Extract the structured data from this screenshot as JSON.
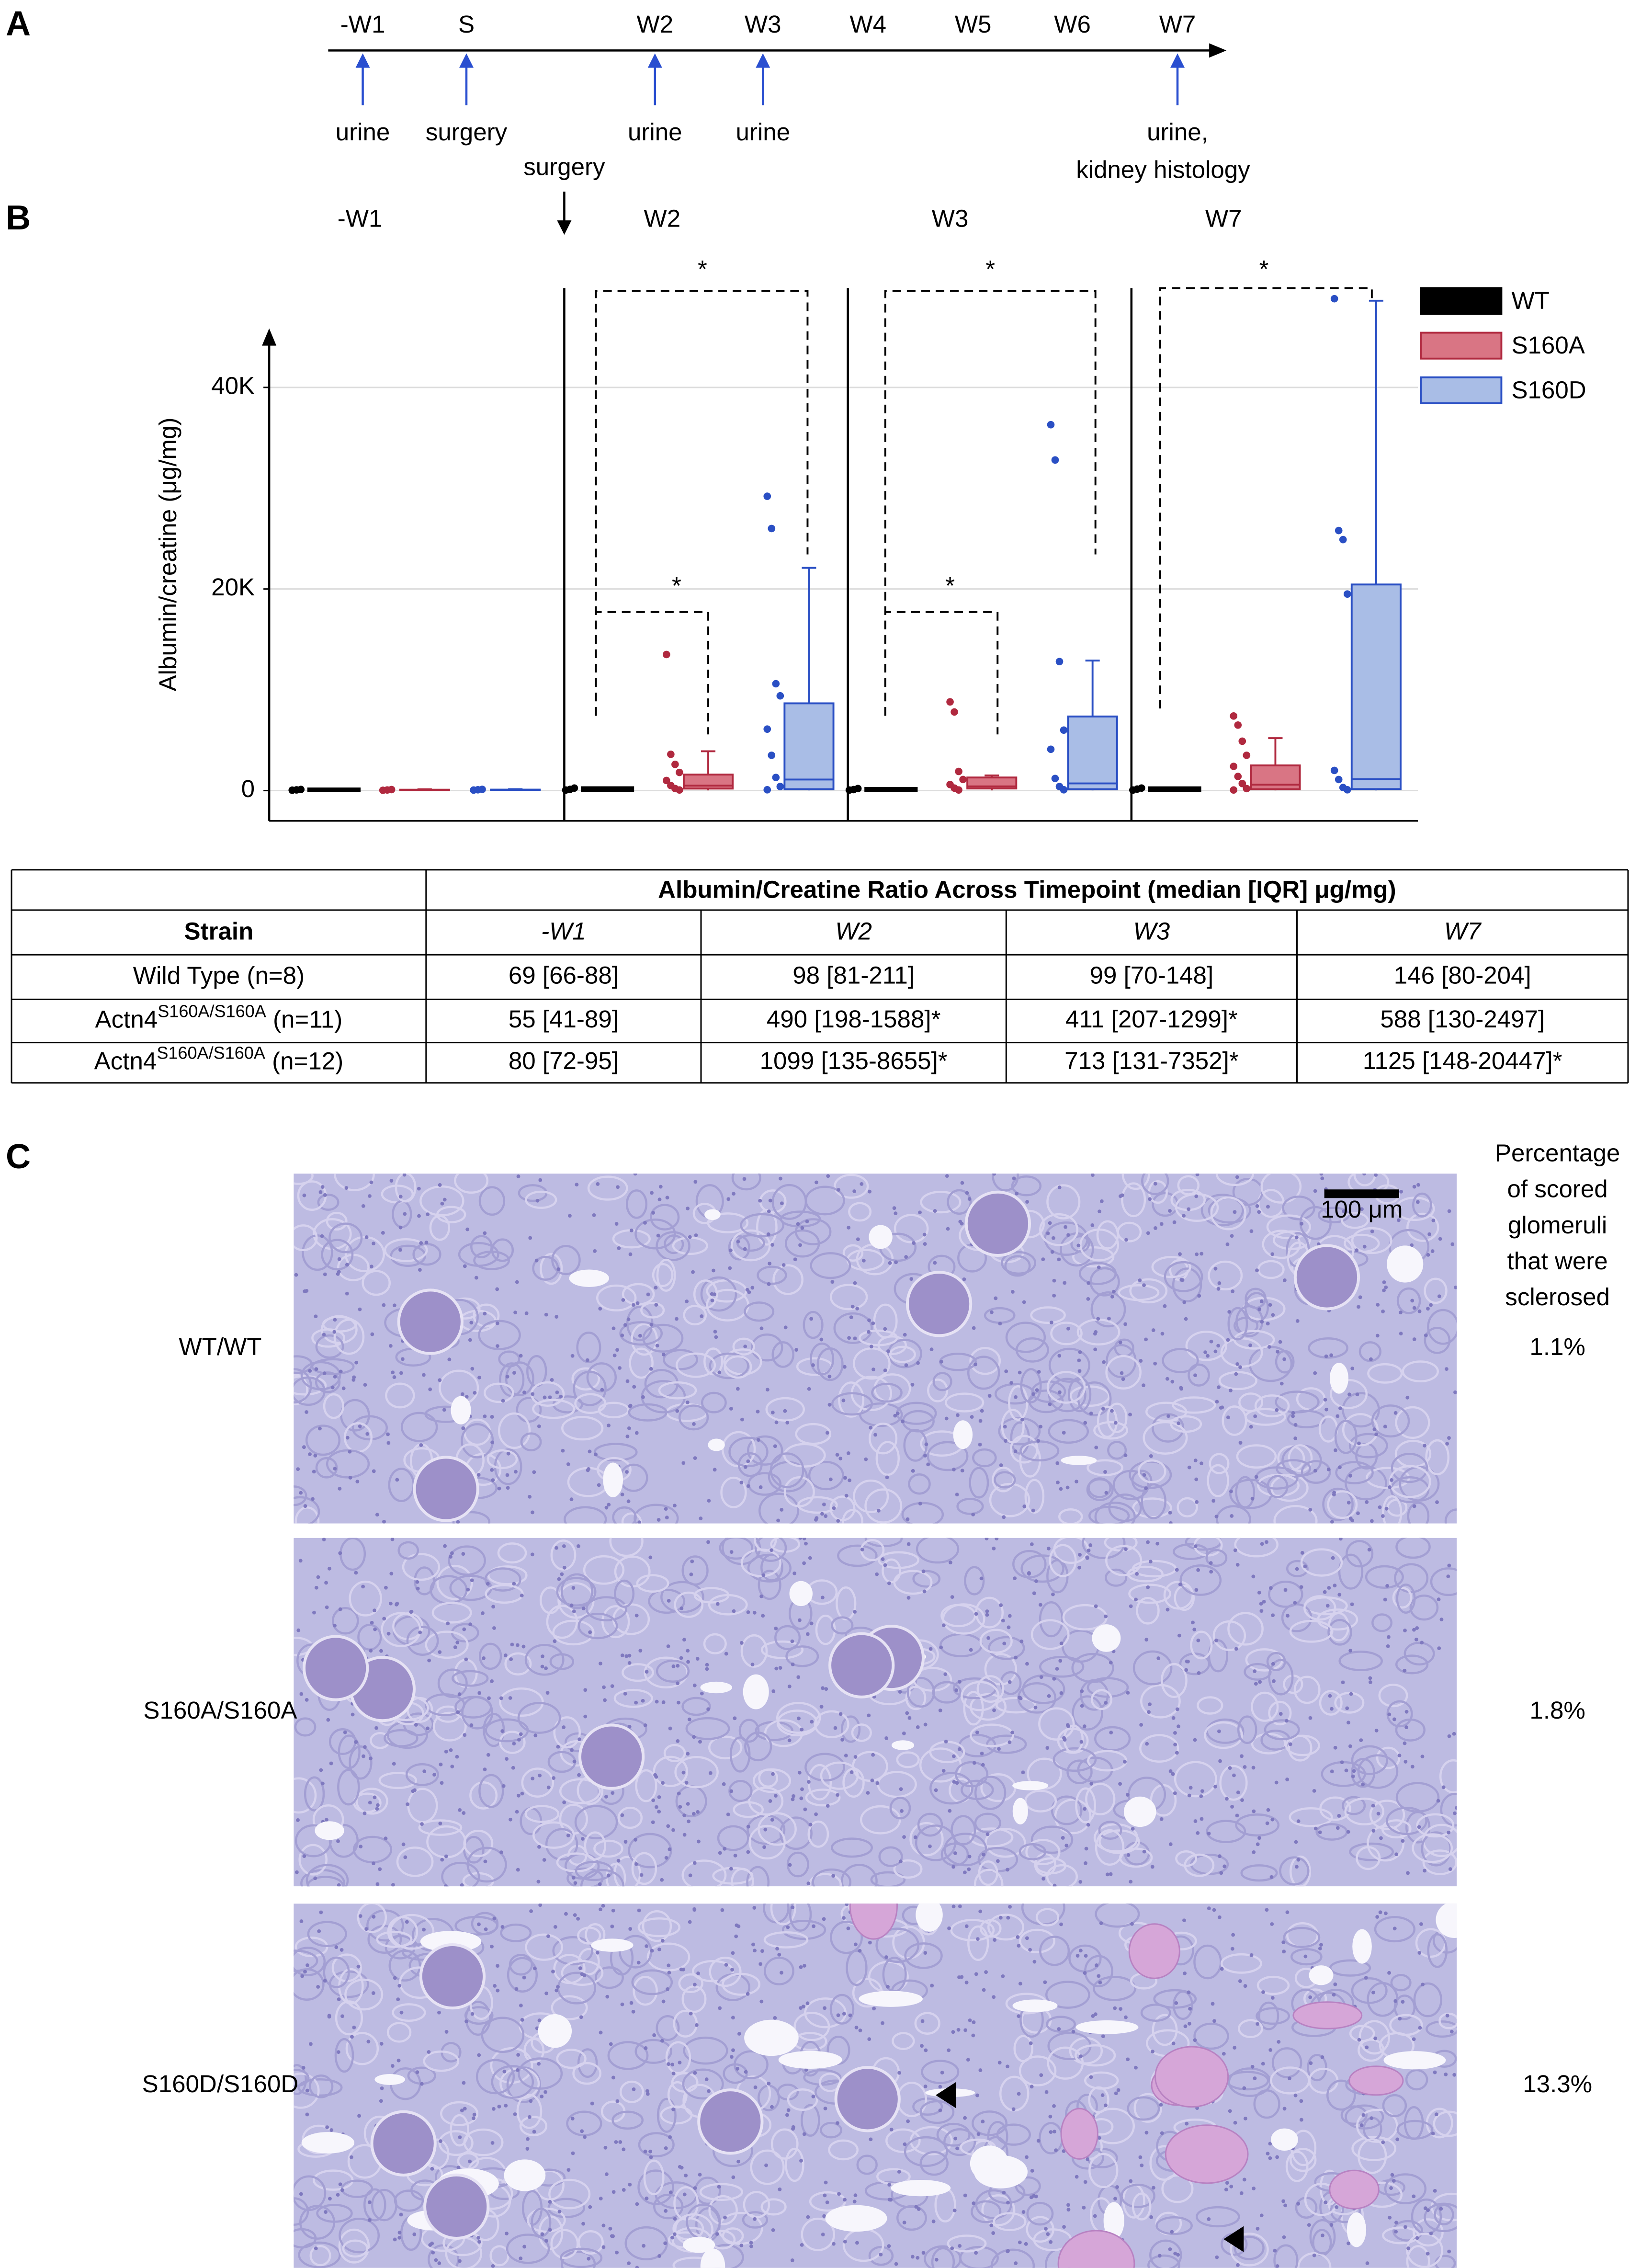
{
  "panel_a": {
    "letter": "A",
    "timepoints": [
      "-W1",
      "S",
      "W2",
      "W3",
      "W4",
      "W5",
      "W6",
      "W7"
    ],
    "events": [
      [
        "urine"
      ],
      [
        "surgery"
      ],
      [
        "urine"
      ],
      [
        "urine"
      ],
      [
        "urine,",
        "kidney histology"
      ]
    ]
  },
  "chart_data": {
    "type": "box",
    "letter": "B",
    "surgery_label": "surgery",
    "groups": [
      "-W1",
      "W2",
      "W3",
      "W7"
    ],
    "y_label": "Albumin/creatine (μg/mg)",
    "ylim": [
      -3000,
      50000
    ],
    "yticks": [
      0,
      {
        "value": 20000,
        "label": "20K"
      },
      {
        "value": 40000,
        "label": "40K"
      }
    ],
    "grid": true,
    "significance": [
      "*",
      "*",
      "*",
      "*",
      "*"
    ],
    "series": [
      {
        "name": "WT",
        "color": "#000000",
        "fill": "#000000",
        "boxes": [
          {
            "whisker_low": 40,
            "q1": 66,
            "median": 69,
            "q3": 88,
            "whisker_high": 120,
            "points": [
              40,
              70,
              110
            ]
          },
          {
            "whisker_low": 40,
            "q1": 81,
            "median": 98,
            "q3": 211,
            "whisker_high": 300,
            "points": [
              50,
              120,
              250
            ]
          },
          {
            "whisker_low": 40,
            "q1": 70,
            "median": 99,
            "q3": 148,
            "whisker_high": 250,
            "points": [
              50,
              100,
              200
            ]
          },
          {
            "whisker_low": 40,
            "q1": 80,
            "median": 146,
            "q3": 204,
            "whisker_high": 300,
            "points": [
              50,
              150,
              250
            ]
          }
        ]
      },
      {
        "name": "S160A",
        "color": "#b0293f",
        "fill": "#d97584",
        "boxes": [
          {
            "whisker_low": 20,
            "q1": 41,
            "median": 55,
            "q3": 89,
            "whisker_high": 130,
            "points": [
              30,
              60,
              100
            ]
          },
          {
            "whisker_low": 20,
            "q1": 198,
            "median": 490,
            "q3": 1588,
            "whisker_high": 3900,
            "points": [
              13500,
              3600,
              2600,
              1800,
              1000,
              500,
              200,
              60
            ]
          },
          {
            "whisker_low": 20,
            "q1": 207,
            "median": 411,
            "q3": 1299,
            "whisker_high": 1500,
            "points": [
              8800,
              7800,
              1900,
              1100,
              600,
              250,
              60
            ]
          },
          {
            "whisker_low": 20,
            "q1": 130,
            "median": 588,
            "q3": 2497,
            "whisker_high": 5200,
            "points": [
              7400,
              6500,
              4900,
              3500,
              2400,
              1400,
              700,
              200,
              60
            ]
          }
        ]
      },
      {
        "name": "S160D",
        "color": "#2a4fc4",
        "fill": "#a9bde6",
        "boxes": [
          {
            "whisker_low": 40,
            "q1": 72,
            "median": 80,
            "q3": 95,
            "whisker_high": 140,
            "points": [
              50,
              80,
              120
            ]
          },
          {
            "whisker_low": 20,
            "q1": 135,
            "median": 1099,
            "q3": 8655,
            "whisker_high": 22100,
            "points": [
              29200,
              26000,
              10600,
              9400,
              6100,
              3500,
              1300,
              400,
              80
            ]
          },
          {
            "whisker_low": 20,
            "q1": 131,
            "median": 713,
            "q3": 7352,
            "whisker_high": 12900,
            "points": [
              36300,
              32800,
              12800,
              6000,
              4100,
              1200,
              400,
              80
            ]
          },
          {
            "whisker_low": 20,
            "q1": 148,
            "median": 1125,
            "q3": 20447,
            "whisker_high": 48600,
            "points": [
              48800,
              25800,
              24900,
              19500,
              2000,
              1100,
              300,
              80
            ]
          }
        ]
      }
    ]
  },
  "table": {
    "title": "Albumin/Creatine Ratio Across Timepoint (median [IQR] μg/mg)",
    "columns": [
      "Strain",
      "-W1",
      "W2",
      "W3",
      "W7"
    ],
    "rows": [
      [
        {
          "base": "Wild Type (n=8)"
        },
        "69 [66-88]",
        "98 [81-211]",
        "99 [70-148]",
        "146 [80-204]"
      ],
      [
        {
          "base": "Actn4",
          "sup": "S160A/S160A",
          "suffix": " (n=11)"
        },
        "55 [41-89]",
        "490 [198-1588]*",
        "411 [207-1299]*",
        "588 [130-2497]"
      ],
      [
        {
          "base": "Actn4",
          "sup": "S160A/S160A",
          "suffix": " (n=12)"
        },
        "80 [72-95]",
        "1099 [135-8655]*",
        "713 [131-7352]*",
        "1125 [148-20447]*"
      ]
    ]
  },
  "panel_c": {
    "letter": "C",
    "header": [
      "Percentage",
      "of scored",
      "glomeruli",
      "that were",
      "sclerosed"
    ],
    "scale_bar": "100 μm",
    "rows": [
      {
        "label": "WT/WT",
        "percent": "1.1%"
      },
      {
        "label": "S160A/S160A",
        "percent": "1.8%"
      },
      {
        "label": "S160D/S160D",
        "percent": "13.3%"
      }
    ]
  }
}
